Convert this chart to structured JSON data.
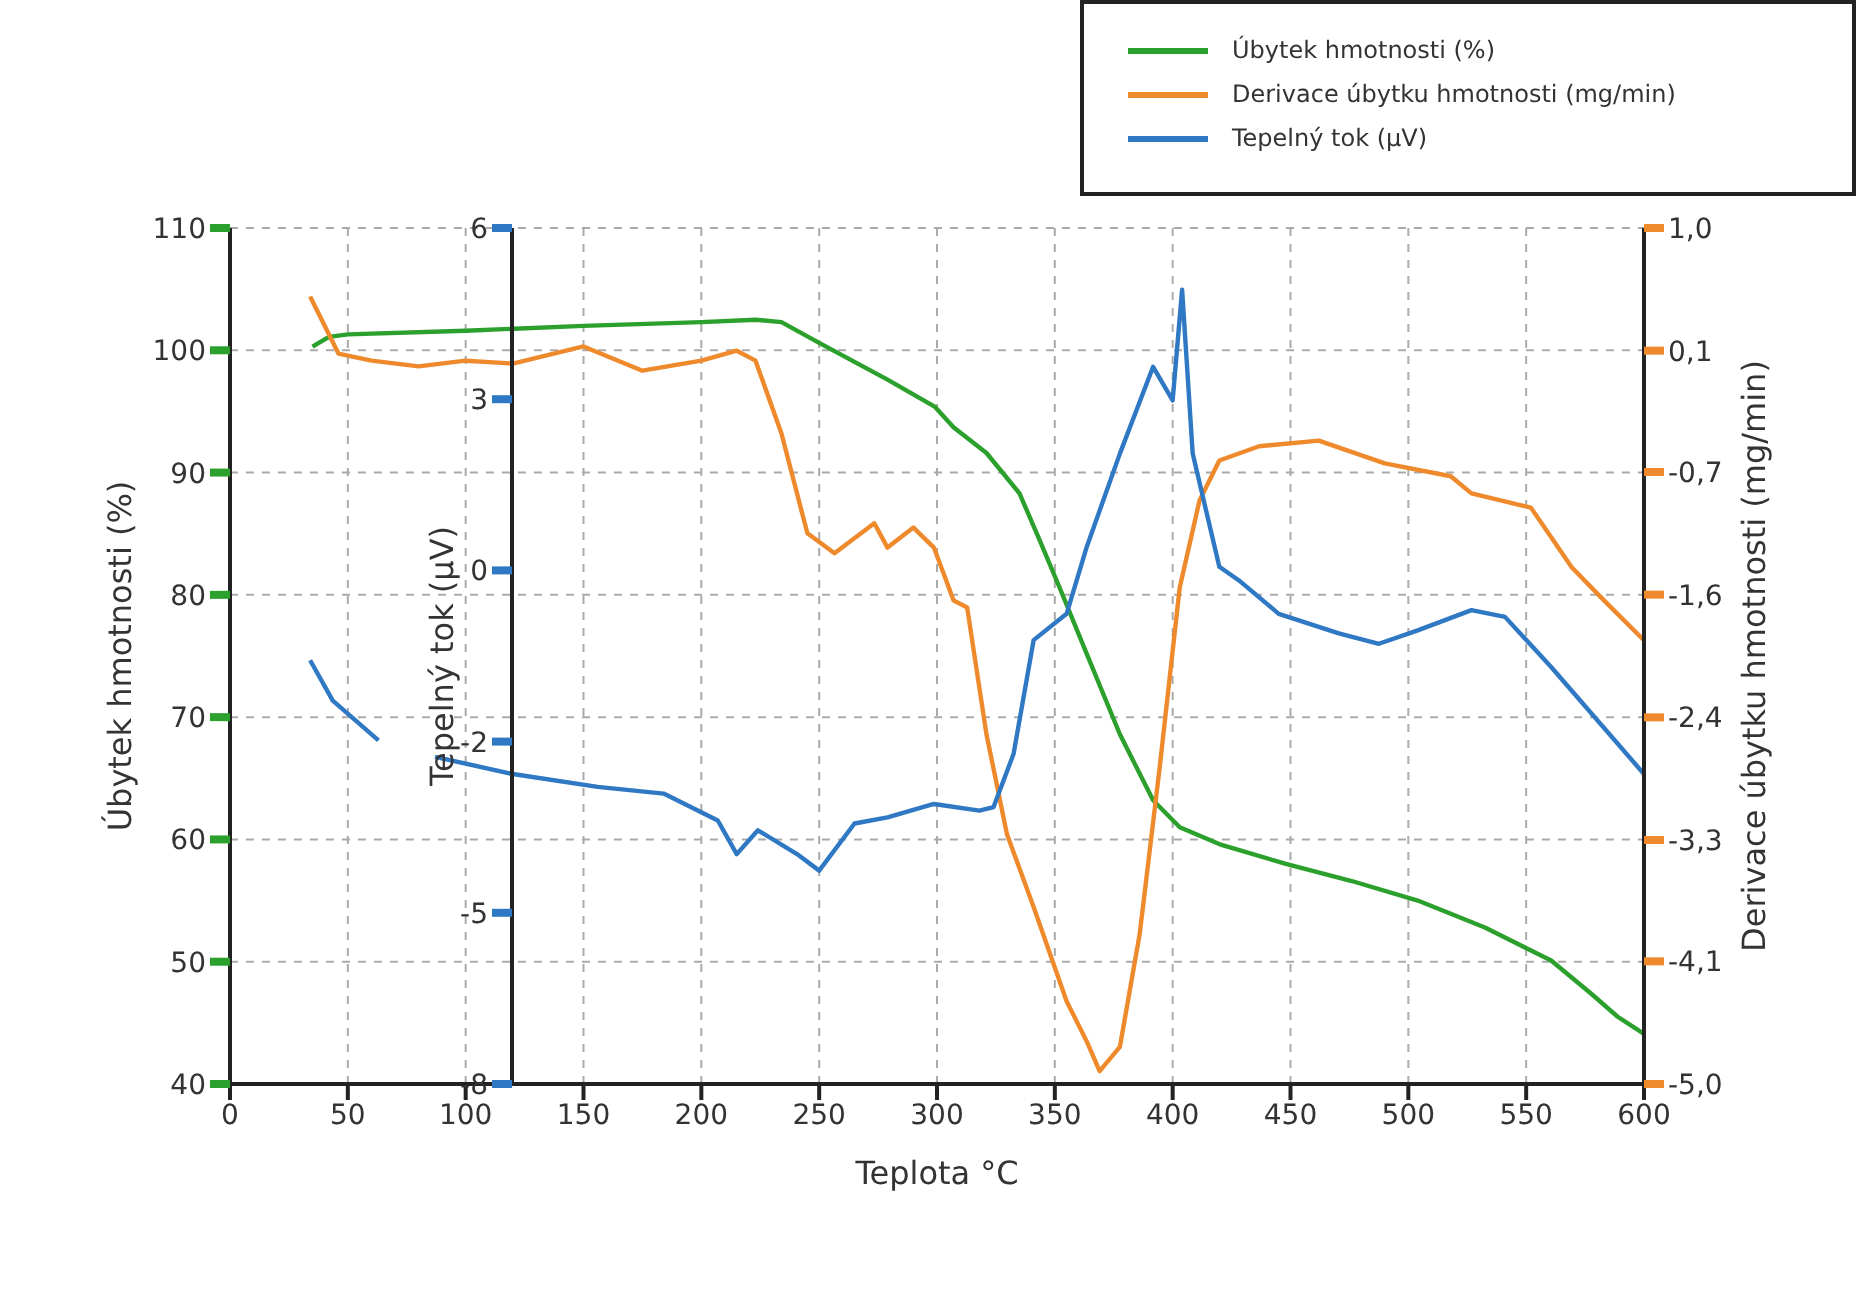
{
  "chart_data": {
    "type": "line",
    "xlabel": "Teplota °C",
    "ylabel": "Úbytek hmotnosti (%)",
    "y2label": "Derivace úbytku hmotnosti (mg/min)",
    "y3label": "Tepelný tok (µV)",
    "xlim": [
      0,
      600
    ],
    "xticks": [
      0,
      50,
      100,
      150,
      200,
      250,
      300,
      350,
      400,
      450,
      500,
      550,
      600
    ],
    "ylim": [
      40,
      110
    ],
    "yticks": [
      40,
      50,
      60,
      70,
      80,
      90,
      100,
      110
    ],
    "y2lim": [
      -5,
      1
    ],
    "y2ticks": [
      {
        "value": -5,
        "label": "-5,0"
      },
      {
        "value": -4.14,
        "label": "-4,1"
      },
      {
        "value": -3.29,
        "label": "-3,3"
      },
      {
        "value": -2.43,
        "label": "-2,4"
      },
      {
        "value": -1.57,
        "label": "-1,6"
      },
      {
        "value": -0.71,
        "label": "-0,7"
      },
      {
        "value": 0.14,
        "label": "0,1"
      },
      {
        "value": 1,
        "label": "1,0"
      }
    ],
    "y3lim": [
      -8,
      6
    ],
    "y3ticks": [
      {
        "value": -8,
        "label": "-8"
      },
      {
        "value": -5.2,
        "label": "-5"
      },
      {
        "value": -2.4,
        "label": "-2"
      },
      {
        "value": 0.4,
        "label": "0"
      },
      {
        "value": 3.2,
        "label": "3"
      },
      {
        "value": 6,
        "label": "6"
      }
    ],
    "grid": true,
    "legend": "top right",
    "series": [
      {
        "name": "Úbytek hmotnosti (%)",
        "color": "#2ca02c",
        "x": [
          35,
          42,
          50,
          100,
          150,
          200,
          223,
          234,
          250,
          279,
          299,
          307,
          321,
          335,
          343.5,
          352,
          363.5,
          377.6,
          391.7,
          403,
          420,
          448,
          476,
          504,
          532.5,
          560.6,
          577.5,
          588.8,
          600
        ],
        "values": [
          100.3,
          101.1,
          101.3,
          101.6,
          102.0,
          102.3,
          102.5,
          102.3,
          100.6,
          97.6,
          95.4,
          93.7,
          91.6,
          88.3,
          84.5,
          80.6,
          75.2,
          68.6,
          63.2,
          61.0,
          59.6,
          58.0,
          56.6,
          55.0,
          52.8,
          50.1,
          47.4,
          45.5,
          44.1
        ]
      },
      {
        "name": "Derivace úbytku hmotnosti (mg/min)",
        "color": "#ef8a2c",
        "axis": "y2",
        "x": [
          34,
          46,
          60,
          80,
          100,
          120,
          150,
          175,
          200,
          215,
          223,
          234,
          245,
          256.5,
          273.4,
          279,
          290,
          298.7,
          307,
          312.8,
          321,
          329.7,
          341,
          355,
          363.5,
          369,
          377.6,
          386,
          394.5,
          403,
          411.4,
          419.8,
          436.7,
          462,
          490,
          518,
          526.8,
          552,
          569.4,
          583,
          600
        ],
        "values": [
          0.52,
          0.12,
          0.07,
          0.03,
          0.07,
          0.05,
          0.17,
          0.0,
          0.07,
          0.14,
          0.07,
          -0.44,
          -1.14,
          -1.28,
          -1.07,
          -1.24,
          -1.1,
          -1.24,
          -1.61,
          -1.66,
          -2.55,
          -3.25,
          -3.76,
          -4.42,
          -4.7,
          -4.91,
          -4.74,
          -3.95,
          -2.78,
          -1.52,
          -0.91,
          -0.63,
          -0.53,
          -0.49,
          -0.65,
          -0.74,
          -0.86,
          -0.96,
          -1.38,
          -1.61,
          -1.89
        ]
      },
      {
        "name": "Tepelný tok (µV)",
        "color": "#2f78c4",
        "axis": "y3",
        "x": [
          34,
          43.6,
          63,
          75,
          87,
          120,
          156,
          184,
          207,
          215,
          224,
          240.6,
          250,
          265,
          279,
          298.7,
          318,
          324,
          332.5,
          341,
          355,
          363.5,
          377.6,
          391.7,
          400,
          404,
          408.5,
          419.8,
          428,
          445,
          470.5,
          487.5,
          504,
          526.8,
          541,
          560.6,
          600
        ],
        "values": [
          -1.07,
          -1.73,
          -2.38,
          null,
          -2.65,
          -2.93,
          -3.14,
          -3.25,
          -3.69,
          -4.24,
          -3.85,
          -4.24,
          -4.51,
          -3.74,
          -3.64,
          -3.42,
          -3.53,
          -3.47,
          -2.6,
          -0.74,
          -0.31,
          0.78,
          2.31,
          3.73,
          3.18,
          4.99,
          2.31,
          0.46,
          0.24,
          -0.31,
          -0.63,
          -0.8,
          -0.58,
          -0.25,
          -0.36,
          -1.18,
          -2.93
        ]
      }
    ]
  }
}
